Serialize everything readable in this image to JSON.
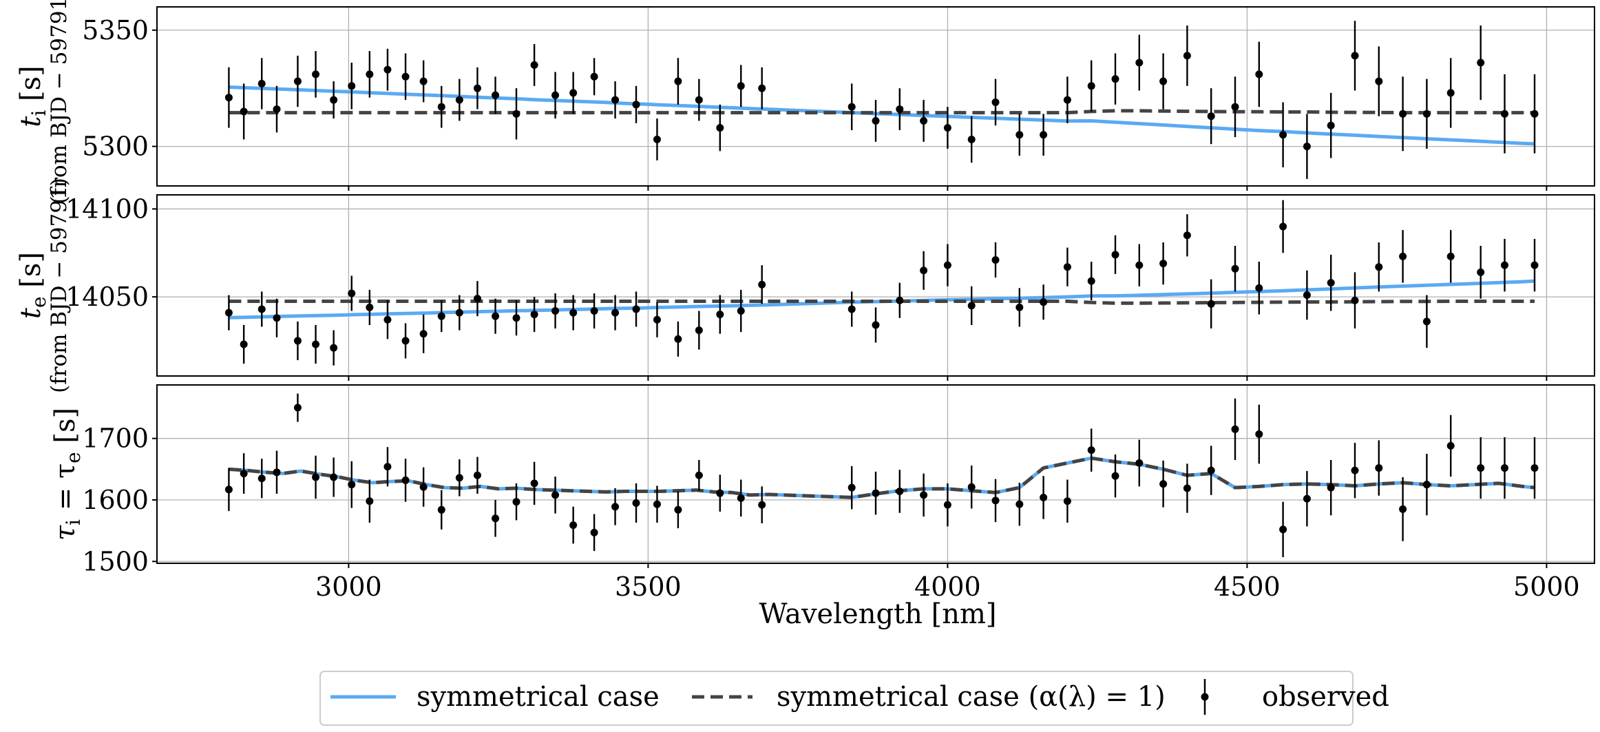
{
  "chart_data": {
    "type": "line",
    "xlabel": "Wavelength [nm]",
    "xlim": [
      2680,
      5080
    ],
    "xticks": [
      3000,
      3500,
      4000,
      4500,
      5000
    ],
    "x": [
      2800,
      2830,
      2860,
      2890,
      2920,
      2950,
      2980,
      3010,
      3040,
      3070,
      3100,
      3130,
      3160,
      3190,
      3220,
      3250,
      3280,
      3310,
      3340,
      3370,
      3400,
      3430,
      3460,
      3490,
      3520,
      3550,
      3580,
      3610,
      3640,
      3670,
      3700,
      3840,
      3880,
      3920,
      3960,
      4000,
      4040,
      4080,
      4120,
      4160,
      4200,
      4240,
      4280,
      4320,
      4360,
      4400,
      4440,
      4480,
      4520,
      4560,
      4600,
      4640,
      4680,
      4720,
      4760,
      4800,
      4840,
      4880,
      4920,
      4960,
      4980
    ],
    "panels": [
      {
        "id": "ti",
        "ylabel_main": "t",
        "ylabel_sub_index": "i",
        "ylabel_unit": "[s]",
        "ylabel_second": "(from BJD − 59791)",
        "ylim": [
          5283,
          5360
        ],
        "yticks": [
          5300,
          5350
        ],
        "obs_x": [
          2800,
          2825,
          2855,
          2880,
          2915,
          2945,
          2975,
          3005,
          3035,
          3065,
          3095,
          3125,
          3155,
          3185,
          3215,
          3245,
          3280,
          3310,
          3345,
          3375,
          3410,
          3445,
          3480,
          3515,
          3550,
          3585,
          3620,
          3655,
          3690,
          3840,
          3880,
          3920,
          3960,
          4000,
          4040,
          4080,
          4120,
          4160,
          4200,
          4240,
          4280,
          4320,
          4360,
          4400,
          4440,
          4480,
          4520,
          4560,
          4600,
          4640,
          4680,
          4720,
          4760,
          4800,
          4840,
          4890,
          4930,
          4980
        ],
        "obs_y": [
          5321,
          5315,
          5327,
          5316,
          5328,
          5331,
          5320,
          5326,
          5331,
          5333,
          5330,
          5328,
          5317,
          5320,
          5325,
          5322,
          5314,
          5335,
          5322,
          5323,
          5330,
          5320,
          5318,
          5303,
          5328,
          5320,
          5308,
          5326,
          5325,
          5317,
          5311,
          5316,
          5311,
          5308,
          5303,
          5319,
          5305,
          5305,
          5320,
          5326,
          5329,
          5336,
          5328,
          5339,
          5313,
          5317,
          5331,
          5305,
          5300,
          5309,
          5339,
          5328,
          5314,
          5314,
          5323,
          5336,
          5314,
          5314
        ],
        "obs_err": [
          13,
          12,
          11,
          10,
          11,
          10,
          8,
          10,
          10,
          9,
          10,
          9,
          9,
          9,
          9,
          8,
          11,
          9,
          10,
          9,
          8,
          8,
          8,
          9,
          10,
          9,
          10,
          9,
          9,
          10,
          9,
          9,
          9,
          9,
          10,
          10,
          9,
          9,
          10,
          11,
          11,
          12,
          12,
          13,
          12,
          13,
          14,
          14,
          14,
          14,
          15,
          15,
          16,
          15,
          15,
          16,
          17,
          17
        ],
        "series": [
          {
            "name": "symmetrical case",
            "style": "solid",
            "x_key": "x",
            "values": [
              5325.5,
              5325.2,
              5324.9,
              5324.6,
              5324.3,
              5324.0,
              5323.7,
              5323.4,
              5323.0,
              5322.7,
              5322.4,
              5322.1,
              5321.8,
              5321.4,
              5321.1,
              5320.8,
              5320.5,
              5320.1,
              5319.8,
              5319.5,
              5319.2,
              5318.9,
              5318.5,
              5318.2,
              5317.9,
              5317.6,
              5317.3,
              5316.9,
              5316.6,
              5316.3,
              5316.0,
              5314.5,
              5314.1,
              5313.7,
              5313.3,
              5312.9,
              5312.5,
              5312.1,
              5311.7,
              5311.3,
              5310.9,
              5311.0,
              5310.4,
              5309.8,
              5309.2,
              5308.6,
              5308.0,
              5307.4,
              5306.8,
              5306.4,
              5305.8,
              5305.3,
              5304.8,
              5304.3,
              5303.8,
              5303.3,
              5302.8,
              5302.3,
              5301.8,
              5301.3,
              5301.1
            ]
          },
          {
            "name": "symmetrical case (α(λ) = 1)",
            "style": "dashed",
            "x_key": "x",
            "values": [
              5314.5,
              5314.5,
              5314.5,
              5314.5,
              5314.5,
              5314.5,
              5314.5,
              5314.5,
              5314.5,
              5314.5,
              5314.5,
              5314.5,
              5314.5,
              5314.5,
              5314.5,
              5314.5,
              5314.5,
              5314.5,
              5314.5,
              5314.5,
              5314.5,
              5314.5,
              5314.5,
              5314.5,
              5314.5,
              5314.5,
              5314.5,
              5314.5,
              5314.5,
              5314.5,
              5314.5,
              5314.5,
              5314.5,
              5314.5,
              5314.5,
              5314.5,
              5314.5,
              5314.5,
              5314.5,
              5314.5,
              5314.5,
              5315.0,
              5315.3,
              5315.3,
              5315.2,
              5315.1,
              5315.0,
              5314.9,
              5314.9,
              5314.8,
              5314.8,
              5314.7,
              5314.6,
              5314.6,
              5314.5,
              5314.5,
              5314.5,
              5314.5,
              5314.5,
              5314.5,
              5314.5
            ]
          }
        ]
      },
      {
        "id": "te",
        "ylabel_main": "t",
        "ylabel_sub_index": "e",
        "ylabel_unit": "[s]",
        "ylabel_second": "(from BJD − 59791)",
        "ylim": [
          14005,
          14108
        ],
        "yticks": [
          14050,
          14100
        ],
        "obs_x": [
          2800,
          2825,
          2855,
          2880,
          2915,
          2945,
          2975,
          3005,
          3035,
          3065,
          3095,
          3125,
          3155,
          3185,
          3215,
          3245,
          3280,
          3310,
          3345,
          3375,
          3410,
          3445,
          3480,
          3515,
          3550,
          3585,
          3620,
          3655,
          3690,
          3840,
          3880,
          3920,
          3960,
          4000,
          4040,
          4080,
          4120,
          4160,
          4200,
          4240,
          4280,
          4320,
          4360,
          4400,
          4440,
          4480,
          4520,
          4560,
          4600,
          4640,
          4680,
          4720,
          4760,
          4800,
          4840,
          4890,
          4930,
          4980
        ],
        "obs_y": [
          14041,
          14023,
          14043,
          14038,
          14025,
          14023,
          14021,
          14052,
          14044,
          14037,
          14025,
          14029,
          14039,
          14041,
          14049,
          14039,
          14038,
          14040,
          14042,
          14041,
          14042,
          14041,
          14043,
          14037,
          14026,
          14031,
          14040,
          14042,
          14057,
          14043,
          14034,
          14048,
          14065,
          14068,
          14045,
          14071,
          14044,
          14047,
          14067,
          14059,
          14074,
          14068,
          14069,
          14085,
          14046,
          14066,
          14055,
          14090,
          14051,
          14058,
          14048,
          14067,
          14073,
          14036,
          14073,
          14064,
          14068,
          14068
        ],
        "obs_err": [
          10,
          11,
          10,
          11,
          11,
          11,
          10,
          10,
          10,
          11,
          10,
          11,
          9,
          10,
          10,
          10,
          10,
          10,
          10,
          10,
          10,
          10,
          10,
          10,
          10,
          11,
          11,
          12,
          11,
          10,
          10,
          10,
          11,
          12,
          11,
          10,
          11,
          10,
          11,
          11,
          11,
          12,
          12,
          12,
          14,
          13,
          15,
          15,
          14,
          16,
          16,
          14,
          15,
          15,
          15,
          15,
          15,
          15
        ],
        "series": [
          {
            "name": "symmetrical case",
            "style": "solid",
            "x_key": "x",
            "values": [
              14038.2,
              14038.4,
              14038.7,
              14038.9,
              14039.2,
              14039.4,
              14039.6,
              14039.9,
              14040.1,
              14040.4,
              14040.6,
              14040.8,
              14041.1,
              14041.3,
              14041.6,
              14041.8,
              14042.1,
              14042.3,
              14042.5,
              14042.8,
              14043.0,
              14043.3,
              14043.5,
              14043.7,
              14044.0,
              14044.2,
              14044.5,
              14044.7,
              14044.9,
              14045.2,
              14045.4,
              14047.0,
              14047.3,
              14047.6,
              14048.0,
              14048.3,
              14048.6,
              14048.9,
              14049.2,
              14049.6,
              14050.0,
              14050.5,
              14050.6,
              14050.9,
              14051.3,
              14051.7,
              14052.1,
              14052.6,
              14053.0,
              14053.5,
              14054.0,
              14054.5,
              14055.1,
              14055.6,
              14056.1,
              14056.6,
              14057.1,
              14057.6,
              14058.1,
              14058.6,
              14059.0
            ]
          },
          {
            "name": "symmetrical case (α(λ) = 1)",
            "style": "dashed",
            "x_key": "x",
            "values": [
              14047.5,
              14047.5,
              14047.5,
              14047.5,
              14047.5,
              14047.5,
              14047.5,
              14047.5,
              14047.5,
              14047.5,
              14047.5,
              14047.5,
              14047.5,
              14047.5,
              14047.5,
              14047.5,
              14047.5,
              14047.5,
              14047.5,
              14047.5,
              14047.5,
              14047.5,
              14047.5,
              14047.5,
              14047.5,
              14047.5,
              14047.5,
              14047.5,
              14047.5,
              14047.5,
              14047.5,
              14047.5,
              14047.5,
              14047.5,
              14047.5,
              14047.5,
              14047.5,
              14047.5,
              14047.5,
              14047.5,
              14047.5,
              14046.8,
              14046.4,
              14046.4,
              14046.5,
              14046.6,
              14046.7,
              14046.8,
              14046.9,
              14047.0,
              14047.1,
              14047.1,
              14047.2,
              14047.3,
              14047.4,
              14047.4,
              14047.5,
              14047.5,
              14047.5,
              14047.5,
              14047.5
            ]
          }
        ]
      },
      {
        "id": "tau",
        "ylabel_main": "τ",
        "ylabel_sub_index": "i",
        "ylabel_eq": "= τ",
        "ylabel_sub_index2": "e",
        "ylabel_unit": "[s]",
        "ylim": [
          1497,
          1787
        ],
        "yticks": [
          1500,
          1600,
          1700
        ],
        "obs_x": [
          2800,
          2825,
          2855,
          2880,
          2915,
          2945,
          2975,
          3005,
          3035,
          3065,
          3095,
          3125,
          3155,
          3185,
          3215,
          3245,
          3280,
          3310,
          3345,
          3375,
          3410,
          3445,
          3480,
          3515,
          3550,
          3585,
          3620,
          3655,
          3690,
          3840,
          3880,
          3920,
          3960,
          4000,
          4040,
          4080,
          4120,
          4160,
          4200,
          4240,
          4280,
          4320,
          4360,
          4400,
          4440,
          4480,
          4520,
          4560,
          4600,
          4640,
          4680,
          4720,
          4760,
          4800,
          4840,
          4890,
          4930,
          4980
        ],
        "obs_y": [
          1617,
          1643,
          1635,
          1645,
          1750,
          1637,
          1637,
          1625,
          1598,
          1654,
          1632,
          1621,
          1584,
          1636,
          1640,
          1570,
          1597,
          1627,
          1608,
          1559,
          1547,
          1589,
          1595,
          1593,
          1584,
          1640,
          1611,
          1603,
          1592,
          1620,
          1611,
          1614,
          1608,
          1592,
          1621,
          1599,
          1593,
          1604,
          1598,
          1681,
          1639,
          1660,
          1626,
          1619,
          1648,
          1715,
          1707,
          1552,
          1602,
          1620,
          1648,
          1652,
          1585,
          1625,
          1688,
          1652,
          1652,
          1652
        ],
        "obs_err": [
          35,
          33,
          32,
          35,
          23,
          35,
          32,
          38,
          35,
          32,
          35,
          32,
          32,
          30,
          30,
          30,
          30,
          35,
          30,
          30,
          30,
          30,
          32,
          30,
          30,
          25,
          30,
          30,
          30,
          35,
          35,
          35,
          35,
          35,
          35,
          35,
          35,
          35,
          35,
          35,
          35,
          38,
          38,
          40,
          40,
          50,
          48,
          45,
          45,
          45,
          45,
          45,
          52,
          50,
          50,
          50,
          50,
          50
        ],
        "series": [
          {
            "name": "symmetrical case",
            "style": "solid",
            "x_key": "x",
            "values": [
              1650,
              1648,
              1645,
              1643,
              1647,
              1642,
              1638,
              1632,
              1628,
              1630,
              1631,
              1625,
              1620,
              1619,
              1622,
              1618,
              1619,
              1617,
              1616,
              1615,
              1614,
              1613,
              1614,
              1614,
              1614,
              1615,
              1616,
              1613,
              1612,
              1608,
              1609,
              1604,
              1610,
              1615,
              1618,
              1618,
              1615,
              1612,
              1620,
              1652,
              1660,
              1668,
              1662,
              1658,
              1650,
              1640,
              1643,
              1620,
              1622,
              1625,
              1626,
              1625,
              1623,
              1626,
              1628,
              1625,
              1623,
              1625,
              1627,
              1622,
              1620
            ]
          },
          {
            "name": "symmetrical case (α(λ) = 1)",
            "style": "dashed",
            "x_key": "x",
            "values": [
              1650,
              1648,
              1645,
              1643,
              1647,
              1642,
              1638,
              1632,
              1628,
              1630,
              1631,
              1625,
              1620,
              1619,
              1622,
              1618,
              1619,
              1617,
              1616,
              1615,
              1614,
              1613,
              1614,
              1614,
              1614,
              1615,
              1616,
              1613,
              1612,
              1608,
              1609,
              1604,
              1610,
              1615,
              1618,
              1618,
              1615,
              1612,
              1620,
              1652,
              1660,
              1668,
              1662,
              1658,
              1650,
              1640,
              1643,
              1620,
              1622,
              1625,
              1626,
              1625,
              1623,
              1626,
              1628,
              1625,
              1623,
              1625,
              1627,
              1622,
              1620
            ]
          }
        ]
      }
    ],
    "legend": {
      "placement": "bottom-center",
      "entries": [
        {
          "label": "symmetrical case",
          "marker": "solid-line"
        },
        {
          "label": "symmetrical case (α(λ) = 1)",
          "marker": "dashed-line"
        },
        {
          "label": "observed",
          "marker": "errorbar-point"
        }
      ]
    },
    "colors": {
      "model": "#5aaaf3",
      "model_alpha1": "#444444",
      "observed": "#000000",
      "grid": "#b0b0b0"
    }
  }
}
